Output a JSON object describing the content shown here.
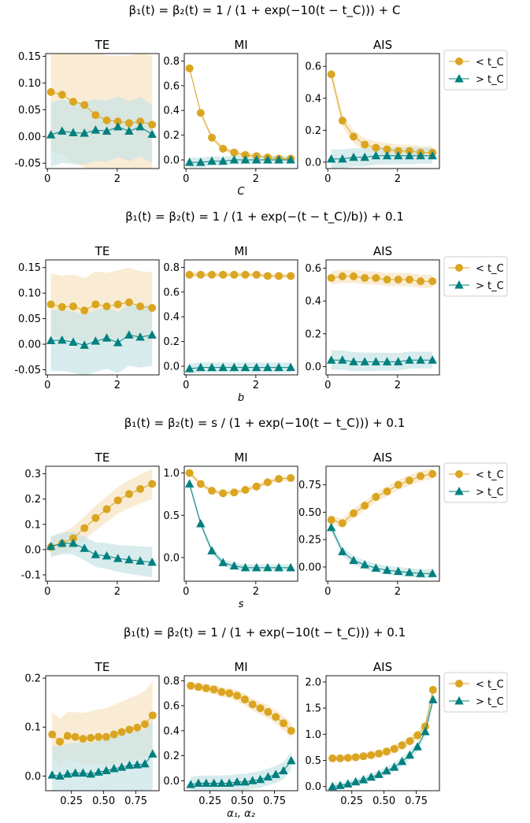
{
  "colors": {
    "before": "#DAA520",
    "after": "#00807F",
    "before_band": "#F8E6C6",
    "after_band": "#C8E4E6"
  },
  "legend": {
    "before_label": "< t_C",
    "after_label": "> t_C"
  },
  "rows": [
    {
      "title": "β₁(t) = β₂(t) = 1 / (1 + exp(−10(t − t_C))) + C",
      "xlabel": "C",
      "xticks": [
        0,
        2
      ],
      "xlim": [
        -0.05,
        3.2
      ],
      "panels": [
        {
          "title": "TE",
          "type": "line",
          "ylim": [
            -0.06,
            0.155
          ],
          "yticks": [
            "-0.05",
            "0.00",
            "0.05",
            "0.10",
            "0.15"
          ],
          "x": [
            0.1,
            0.42,
            0.74,
            1.06,
            1.38,
            1.7,
            2.02,
            2.34,
            2.66,
            3.0
          ],
          "series": [
            {
              "name": "< t_C",
              "values": [
                0.083,
                0.078,
                0.065,
                0.059,
                0.04,
                0.03,
                0.028,
                0.025,
                0.028,
                0.022
              ],
              "band": [
                0.11,
                0.13
              ]
            },
            {
              "name": "> t_C",
              "values": [
                0.003,
                0.01,
                0.007,
                0.006,
                0.012,
                0.01,
                0.018,
                0.01,
                0.018,
                0.004
              ],
              "band": [
                0.06,
                0.055
              ]
            }
          ]
        },
        {
          "title": "MI",
          "type": "line",
          "ylim": [
            -0.07,
            0.86
          ],
          "yticks": [
            "0.0",
            "0.2",
            "0.4",
            "0.6",
            "0.8"
          ],
          "x": [
            0.1,
            0.42,
            0.74,
            1.06,
            1.38,
            1.7,
            2.02,
            2.34,
            2.66,
            3.0
          ],
          "series": [
            {
              "name": "< t_C",
              "values": [
                0.74,
                0.38,
                0.18,
                0.09,
                0.06,
                0.04,
                0.03,
                0.02,
                0.01,
                0.01
              ],
              "band": [
                0.02,
                0.02
              ]
            },
            {
              "name": "> t_C",
              "values": [
                -0.02,
                -0.02,
                -0.01,
                -0.01,
                0.0,
                0.0,
                0.0,
                0.0,
                0.0,
                0.0
              ],
              "band": [
                0.04,
                0.03
              ]
            }
          ]
        },
        {
          "title": "AIS",
          "type": "line",
          "ylim": [
            -0.04,
            0.68
          ],
          "yticks": [
            "0.0",
            "0.2",
            "0.4",
            "0.6"
          ],
          "x": [
            0.1,
            0.42,
            0.74,
            1.06,
            1.38,
            1.7,
            2.02,
            2.34,
            2.66,
            3.0
          ],
          "series": [
            {
              "name": "< t_C",
              "values": [
                0.55,
                0.26,
                0.16,
                0.11,
                0.09,
                0.08,
                0.07,
                0.07,
                0.06,
                0.06
              ],
              "band": [
                0.04,
                0.04
              ]
            },
            {
              "name": "> t_C",
              "values": [
                0.02,
                0.02,
                0.03,
                0.03,
                0.04,
                0.04,
                0.04,
                0.04,
                0.04,
                0.04
              ],
              "band": [
                0.06,
                0.05
              ]
            }
          ]
        }
      ]
    },
    {
      "title": "β₁(t) = β₂(t) = 1 / (1 + exp(−(t − t_C)/b)) + 0.1",
      "xlabel": "b",
      "xticks": [
        0,
        2
      ],
      "xlim": [
        -0.05,
        3.2
      ],
      "panels": [
        {
          "title": "TE",
          "type": "line",
          "ylim": [
            -0.06,
            0.165
          ],
          "yticks": [
            "-0.05",
            "0.00",
            "0.05",
            "0.10",
            "0.15"
          ],
          "x": [
            0.1,
            0.42,
            0.74,
            1.06,
            1.38,
            1.7,
            2.02,
            2.34,
            2.66,
            3.0
          ],
          "series": [
            {
              "name": "< t_C",
              "values": [
                0.078,
                0.073,
                0.074,
                0.066,
                0.078,
                0.074,
                0.078,
                0.082,
                0.074,
                0.071
              ],
              "band": [
                0.06,
                0.07
              ]
            },
            {
              "name": "> t_C",
              "values": [
                0.007,
                0.008,
                0.004,
                -0.002,
                0.006,
                0.012,
                0.003,
                0.018,
                0.014,
                0.018
              ],
              "band": [
                0.06,
                0.06
              ]
            }
          ]
        },
        {
          "title": "MI",
          "type": "line",
          "ylim": [
            -0.07,
            0.86
          ],
          "yticks": [
            "0.0",
            "0.2",
            "0.4",
            "0.6",
            "0.8"
          ],
          "x": [
            0.1,
            0.42,
            0.74,
            1.06,
            1.38,
            1.7,
            2.02,
            2.34,
            2.66,
            3.0
          ],
          "series": [
            {
              "name": "< t_C",
              "values": [
                0.74,
                0.74,
                0.74,
                0.74,
                0.74,
                0.74,
                0.74,
                0.73,
                0.73,
                0.73
              ],
              "band": [
                0.02,
                0.02
              ]
            },
            {
              "name": "> t_C",
              "values": [
                -0.02,
                -0.01,
                -0.01,
                -0.01,
                -0.01,
                -0.01,
                -0.01,
                -0.01,
                -0.01,
                -0.01
              ],
              "band": [
                0.04,
                0.04
              ]
            }
          ]
        },
        {
          "title": "AIS",
          "type": "line",
          "ylim": [
            -0.05,
            0.65
          ],
          "yticks": [
            "0.0",
            "0.2",
            "0.4",
            "0.6"
          ],
          "x": [
            0.1,
            0.42,
            0.74,
            1.06,
            1.38,
            1.7,
            2.02,
            2.34,
            2.66,
            3.0
          ],
          "series": [
            {
              "name": "< t_C",
              "values": [
                0.54,
                0.55,
                0.55,
                0.54,
                0.54,
                0.53,
                0.53,
                0.53,
                0.52,
                0.52
              ],
              "band": [
                0.04,
                0.04
              ]
            },
            {
              "name": "> t_C",
              "values": [
                0.04,
                0.04,
                0.03,
                0.03,
                0.03,
                0.03,
                0.03,
                0.04,
                0.04,
                0.04
              ],
              "band": [
                0.06,
                0.05
              ]
            }
          ]
        }
      ]
    },
    {
      "title": "β₁(t) = β₂(t) = s / (1 + exp(−10(t − t_C))) + 0.1",
      "xlabel": "s",
      "xticks": [
        0,
        2
      ],
      "xlim": [
        -0.05,
        3.2
      ],
      "panels": [
        {
          "title": "TE",
          "type": "line",
          "ylim": [
            -0.125,
            0.33
          ],
          "yticks": [
            "-0.1",
            "0.0",
            "0.1",
            "0.2",
            "0.3"
          ],
          "x": [
            0.1,
            0.42,
            0.74,
            1.06,
            1.38,
            1.7,
            2.02,
            2.34,
            2.66,
            3.0
          ],
          "series": [
            {
              "name": "< t_C",
              "values": [
                0.01,
                0.025,
                0.045,
                0.085,
                0.125,
                0.16,
                0.195,
                0.22,
                0.24,
                0.26
              ],
              "band": [
                0.04,
                0.06
              ]
            },
            {
              "name": "> t_C",
              "values": [
                0.013,
                0.025,
                0.025,
                0.005,
                -0.02,
                -0.025,
                -0.035,
                -0.04,
                -0.045,
                -0.05
              ],
              "band": [
                0.04,
                0.06
              ]
            }
          ]
        },
        {
          "title": "MI",
          "type": "line",
          "ylim": [
            -0.28,
            1.08
          ],
          "yticks": [
            "0.0",
            "0.5",
            "1.0"
          ],
          "x": [
            0.1,
            0.42,
            0.74,
            1.06,
            1.38,
            1.7,
            2.02,
            2.34,
            2.66,
            3.0
          ],
          "series": [
            {
              "name": "< t_C",
              "values": [
                1.0,
                0.87,
                0.79,
                0.76,
                0.77,
                0.8,
                0.84,
                0.89,
                0.93,
                0.94
              ],
              "band": [
                0.03,
                0.03
              ]
            },
            {
              "name": "> t_C",
              "values": [
                0.87,
                0.4,
                0.08,
                -0.06,
                -0.1,
                -0.12,
                -0.12,
                -0.12,
                -0.12,
                -0.12
              ],
              "band": [
                0.04,
                0.04
              ]
            }
          ]
        },
        {
          "title": "AIS",
          "type": "line",
          "ylim": [
            -0.13,
            0.92
          ],
          "yticks": [
            "0.00",
            "0.25",
            "0.50",
            "0.75"
          ],
          "x": [
            0.1,
            0.42,
            0.74,
            1.06,
            1.38,
            1.7,
            2.02,
            2.34,
            2.66,
            3.0
          ],
          "series": [
            {
              "name": "< t_C",
              "values": [
                0.43,
                0.4,
                0.49,
                0.56,
                0.64,
                0.69,
                0.75,
                0.79,
                0.83,
                0.85
              ],
              "band": [
                0.04,
                0.05
              ]
            },
            {
              "name": "> t_C",
              "values": [
                0.36,
                0.14,
                0.06,
                0.02,
                -0.01,
                -0.03,
                -0.04,
                -0.05,
                -0.06,
                -0.06
              ],
              "band": [
                0.04,
                0.04
              ]
            }
          ]
        }
      ]
    },
    {
      "title": "β₁(t) = β₂(t) = 1 / (1 + exp(−10(t − t_C))) + 0.1",
      "xlabel": "α₁, α₂",
      "xticks": [
        0.25,
        0.5,
        0.75
      ],
      "xtick_labels": [
        "0.25",
        "0.50",
        "0.75"
      ],
      "xlim": [
        0.05,
        0.93
      ],
      "panels": [
        {
          "title": "TE",
          "type": "line",
          "ylim": [
            -0.03,
            0.205
          ],
          "yticks": [
            "0.0",
            "0.1",
            "0.2"
          ],
          "x": [
            0.1,
            0.16,
            0.22,
            0.28,
            0.34,
            0.4,
            0.46,
            0.52,
            0.58,
            0.64,
            0.7,
            0.76,
            0.82,
            0.88
          ],
          "series": [
            {
              "name": "< t_C",
              "values": [
                0.085,
                0.07,
                0.082,
                0.08,
                0.076,
                0.078,
                0.08,
                0.08,
                0.085,
                0.09,
                0.095,
                0.099,
                0.106,
                0.124
              ],
              "band": [
                0.045,
                0.07
              ]
            },
            {
              "name": "> t_C",
              "values": [
                0.002,
                0.0,
                0.004,
                0.006,
                0.006,
                0.004,
                0.008,
                0.011,
                0.015,
                0.018,
                0.022,
                0.023,
                0.025,
                0.045
              ],
              "band": [
                0.06,
                0.07
              ]
            }
          ]
        },
        {
          "title": "MI",
          "type": "line",
          "ylim": [
            -0.08,
            0.84
          ],
          "yticks": [
            "0.0",
            "0.2",
            "0.4",
            "0.6",
            "0.8"
          ],
          "x": [
            0.1,
            0.16,
            0.22,
            0.28,
            0.34,
            0.4,
            0.46,
            0.52,
            0.58,
            0.64,
            0.7,
            0.76,
            0.82,
            0.88
          ],
          "series": [
            {
              "name": "< t_C",
              "values": [
                0.76,
                0.75,
                0.74,
                0.73,
                0.71,
                0.7,
                0.68,
                0.65,
                0.61,
                0.58,
                0.55,
                0.51,
                0.46,
                0.4
              ],
              "band": [
                0.03,
                0.06
              ]
            },
            {
              "name": "> t_C",
              "values": [
                -0.03,
                -0.02,
                -0.02,
                -0.02,
                -0.02,
                -0.02,
                -0.01,
                -0.01,
                0.0,
                0.01,
                0.03,
                0.05,
                0.08,
                0.16
              ],
              "band": [
                0.06,
                0.07
              ]
            }
          ]
        },
        {
          "title": "AIS",
          "type": "line",
          "ylim": [
            -0.08,
            2.12
          ],
          "yticks": [
            "0.0",
            "0.5",
            "1.0",
            "1.5",
            "2.0"
          ],
          "x": [
            0.1,
            0.16,
            0.22,
            0.28,
            0.34,
            0.4,
            0.46,
            0.52,
            0.58,
            0.64,
            0.7,
            0.76,
            0.82,
            0.88
          ],
          "series": [
            {
              "name": "< t_C",
              "values": [
                0.54,
                0.54,
                0.55,
                0.56,
                0.58,
                0.6,
                0.63,
                0.67,
                0.72,
                0.79,
                0.87,
                0.98,
                1.15,
                1.85
              ],
              "band": [
                0.05,
                0.1
              ]
            },
            {
              "name": "> t_C",
              "values": [
                0.0,
                0.02,
                0.05,
                0.09,
                0.13,
                0.18,
                0.23,
                0.3,
                0.37,
                0.48,
                0.6,
                0.76,
                1.05,
                1.66
              ],
              "band": [
                0.05,
                0.1
              ]
            }
          ]
        }
      ]
    }
  ]
}
